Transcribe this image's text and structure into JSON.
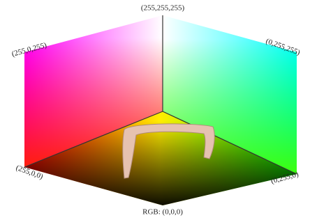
{
  "labels": {
    "white": "(255,255,255)",
    "magenta": "(255,0,255)",
    "cyan": "(0,255,255)",
    "red": "(255,0,0)",
    "green": "(0,255,0)",
    "black": "RGB: (0,0,0)"
  }
}
